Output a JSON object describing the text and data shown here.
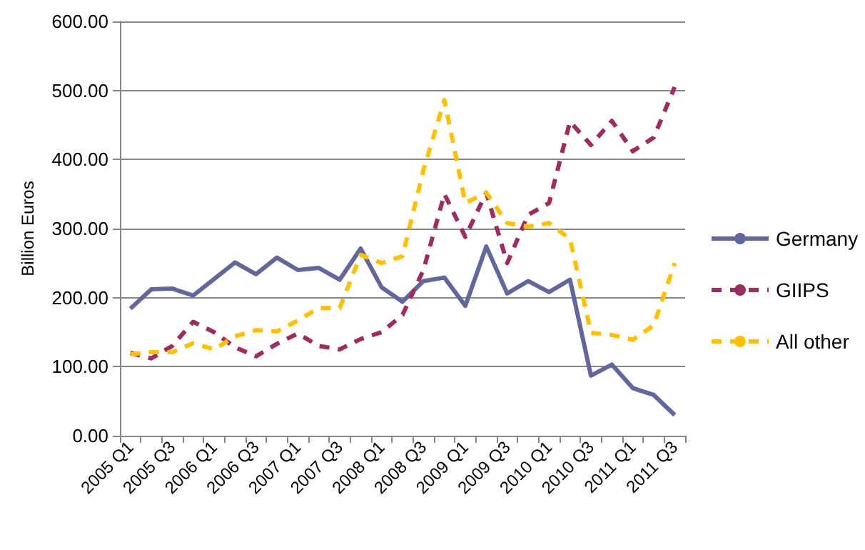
{
  "chart_data": {
    "type": "line",
    "ylabel": "Billion Euros",
    "categories": [
      "2005 Q1",
      null,
      "2005 Q3",
      null,
      "2006 Q1",
      null,
      "2006 Q3",
      null,
      "2007 Q1",
      null,
      "2007 Q3",
      null,
      "2008 Q1",
      null,
      "2008 Q3",
      null,
      "2009 Q1",
      null,
      "2009 Q3",
      null,
      "2010 Q1",
      null,
      "2010 Q3",
      null,
      "2011 Q1",
      null,
      "2011 Q3"
    ],
    "series": [
      {
        "name": "Germany",
        "color": "#63669b",
        "line_style": "solid",
        "values": [
          184,
          212,
          213,
          203,
          227,
          251,
          234,
          258,
          240,
          243,
          226,
          271,
          215,
          194,
          224,
          229,
          188,
          274,
          206,
          224,
          208,
          226,
          87,
          103,
          69,
          59,
          30
        ]
      },
      {
        "name": "GIIPS",
        "color": "#9b2d5f",
        "line_style": "dashed",
        "values": [
          120,
          112,
          130,
          165,
          150,
          128,
          115,
          133,
          148,
          130,
          125,
          140,
          150,
          175,
          240,
          350,
          288,
          352,
          250,
          320,
          337,
          455,
          421,
          456,
          412,
          432,
          505
        ]
      },
      {
        "name": "All other",
        "color": "#ffc000",
        "line_style": "dashed",
        "values": [
          118,
          121,
          121,
          134,
          125,
          144,
          153,
          151,
          167,
          185,
          185,
          262,
          250,
          260,
          385,
          486,
          337,
          352,
          308,
          303,
          308,
          285,
          149,
          146,
          139,
          160,
          250
        ]
      }
    ],
    "ylim": [
      0,
      600
    ],
    "yticks": [
      {
        "value": 0,
        "label": "0.00"
      },
      {
        "value": 100,
        "label": "100.00"
      },
      {
        "value": 200,
        "label": "200.00"
      },
      {
        "value": 300,
        "label": "300.00"
      },
      {
        "value": 400,
        "label": "400.00"
      },
      {
        "value": 500,
        "label": "500.00"
      },
      {
        "value": 600,
        "label": "600.00"
      }
    ],
    "grid": "y",
    "legend": "right",
    "marker": "none"
  }
}
